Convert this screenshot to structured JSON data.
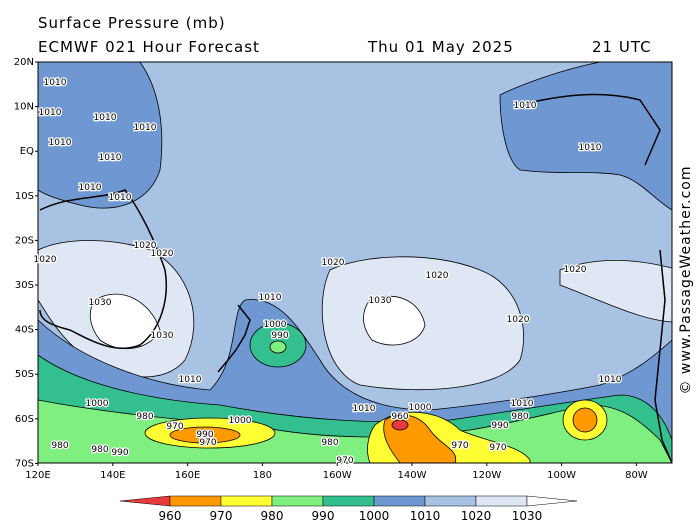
{
  "header": {
    "title": "Surface Pressure (mb)",
    "subtitle": "ECMWF 021 Hour Forecast",
    "date": "Thu 01 May 2025",
    "time": "21 UTC"
  },
  "lat_labels": [
    "20N",
    "10N",
    "EQ",
    "10S",
    "20S",
    "30S",
    "40S",
    "50S",
    "60S",
    "70S"
  ],
  "lon_labels": [
    "120E",
    "140E",
    "160E",
    "180",
    "160W",
    "140W",
    "120W",
    "100W",
    "80W"
  ],
  "colorbar_labels": [
    "960",
    "970",
    "980",
    "990",
    "1000",
    "1010",
    "1020",
    "1030"
  ],
  "credit": "© www.PassageWeather.com",
  "contour_labels": [
    "1010",
    "1010",
    "1010",
    "1010",
    "1010",
    "1010",
    "1010",
    "1010",
    "1010",
    "1010",
    "1020",
    "1020",
    "1020",
    "1020",
    "1020",
    "1020",
    "1020",
    "1030",
    "1030",
    "1030",
    "1010",
    "1010",
    "1010",
    "1010",
    "1010",
    "1000",
    "990",
    "1000",
    "1000",
    "1000",
    "990",
    "980",
    "990",
    "980",
    "970",
    "970",
    "980",
    "960",
    "970",
    "970",
    "980",
    "970",
    "990",
    "980"
  ]
}
